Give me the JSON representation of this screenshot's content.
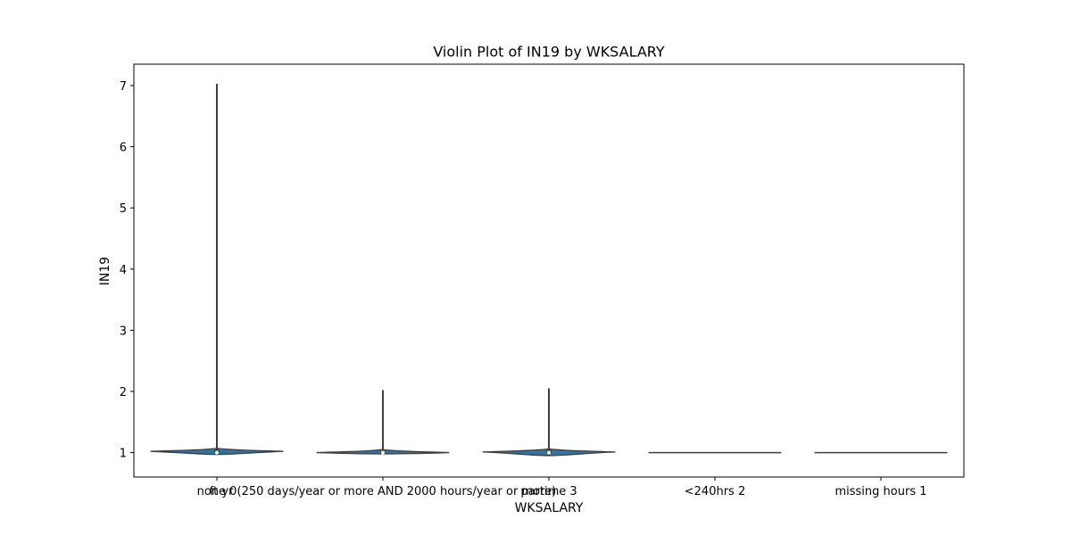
{
  "chart_data": {
    "type": "violin",
    "title": "Violin Plot of IN19 by WKSALARY",
    "xlabel": "WKSALARY",
    "ylabel": "IN19",
    "ylim": [
      0.6,
      7.35
    ],
    "yticks": [
      1,
      2,
      3,
      4,
      5,
      6,
      7
    ],
    "ytick_labels": [
      "1",
      "2",
      "3",
      "4",
      "5",
      "6",
      "7"
    ],
    "categories": [
      "none 0",
      "ft yr (250 days/year or more AND 2000 hours/year or more)",
      "partime 3",
      "<240hrs 2",
      "missing hours 1"
    ],
    "violins": [
      {
        "category": "none 0",
        "min": 0.97,
        "q1": 1.0,
        "median": 1.0,
        "q3": 1.04,
        "max": 7.03,
        "peak": 1.02,
        "has_box": true
      },
      {
        "category": "ft yr (250 days/year or more AND 2000 hours/year or more)",
        "min": 0.98,
        "q1": 1.0,
        "median": 1.0,
        "q3": 1.02,
        "max": 2.02,
        "peak": 1.0,
        "has_box": true
      },
      {
        "category": "partime 3",
        "min": 0.95,
        "q1": 0.99,
        "median": 1.0,
        "q3": 1.03,
        "max": 2.05,
        "peak": 1.01,
        "has_box": true
      },
      {
        "category": "<240hrs 2",
        "min": 1.0,
        "q1": 1.0,
        "median": 1.0,
        "q3": 1.0,
        "max": 1.0,
        "peak": 1.0,
        "has_box": false
      },
      {
        "category": "missing hours 1",
        "min": 1.0,
        "q1": 1.0,
        "median": 1.0,
        "q3": 1.0,
        "max": 1.0,
        "peak": 1.0,
        "has_box": false
      }
    ],
    "colors": {
      "violin_fill": "#3274a1",
      "line": "#3f3f3f",
      "axes": "#000000",
      "background": "#ffffff"
    },
    "grid": false,
    "legend": "none"
  }
}
